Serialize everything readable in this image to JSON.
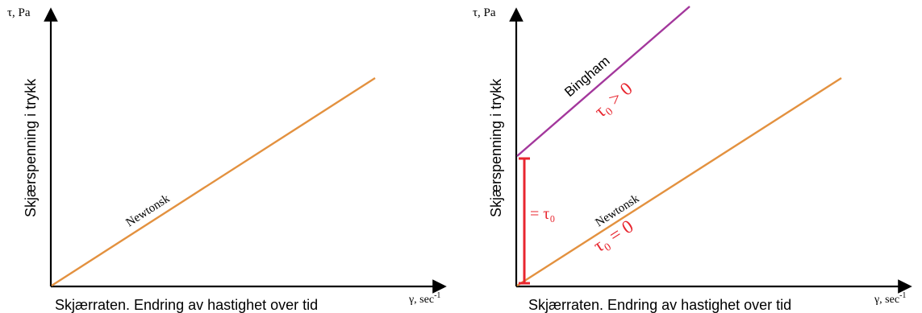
{
  "colors": {
    "newtonian_line": "#e3913f",
    "bingham_line": "#a3379c",
    "yield_bracket": "#e8262f",
    "axis": "#000000",
    "text_red": "#e8262f"
  },
  "panels": [
    {
      "y_axis_unit": "τ, Pa",
      "y_axis_title": "Skjærspenning i trykk",
      "x_axis_unit": "γ, sec",
      "x_axis_unit_exp": "-1",
      "x_axis_title": "Skjærraten. Endring av hastighet over tid",
      "newtonian_label": "Newtonsk"
    },
    {
      "y_axis_unit": "τ, Pa",
      "y_axis_title": "Skjærspenning i trykk",
      "x_axis_unit": "γ, sec",
      "x_axis_unit_exp": "-1",
      "x_axis_title": "Skjærraten. Endring av hastighet over tid",
      "bingham_label": "Bingham",
      "bingham_condition": "τ₀ > 0",
      "newtonian_label": "Newtonsk",
      "newtonian_condition": "τ₀ = 0",
      "yield_stress_label": "= τ₀"
    }
  ]
}
